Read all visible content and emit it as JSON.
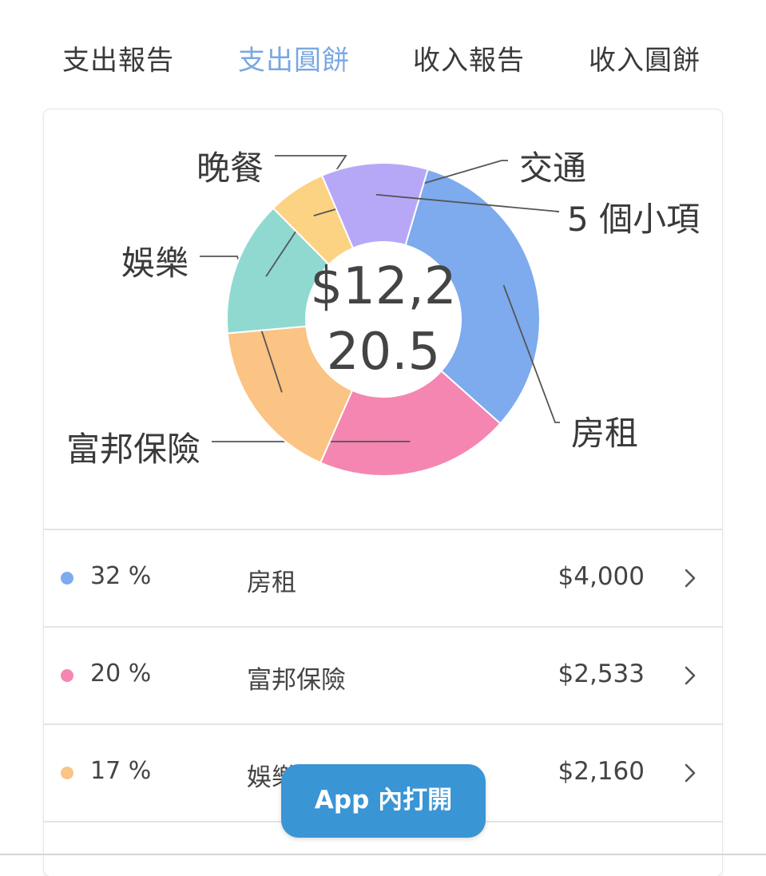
{
  "tabs": [
    {
      "label": "支出報告",
      "active": false
    },
    {
      "label": "支出圓餅",
      "active": true
    },
    {
      "label": "收入報告",
      "active": false
    },
    {
      "label": "收入圓餅",
      "active": false
    }
  ],
  "chart_data": {
    "type": "pie",
    "center_text_line1": "$12,2",
    "center_text_line2": "20.5",
    "slices": [
      {
        "label": "房租",
        "percent": 32,
        "color": "#7eaaee"
      },
      {
        "label": "富邦保險",
        "percent": 20,
        "color": "#f486b1"
      },
      {
        "label": "娛樂",
        "percent": 17,
        "color": "#fbc384"
      },
      {
        "label": "晚餐",
        "percent": 14,
        "color": "#8fd9d1"
      },
      {
        "label": "交通",
        "percent": 6,
        "color": "#fcd283"
      },
      {
        "label": "5 個小項",
        "percent": 11,
        "color": "#b7a8f7"
      }
    ]
  },
  "list": [
    {
      "percent": "32 %",
      "name": "房租",
      "amount": "$4,000",
      "color": "#7eaaee"
    },
    {
      "percent": "20 %",
      "name": "富邦保險",
      "amount": "$2,533",
      "color": "#f486b1"
    },
    {
      "percent": "17 %",
      "name": "娛樂",
      "amount": "$2,160",
      "color": "#fbc384"
    }
  ],
  "open_in_app": "App 內打開"
}
